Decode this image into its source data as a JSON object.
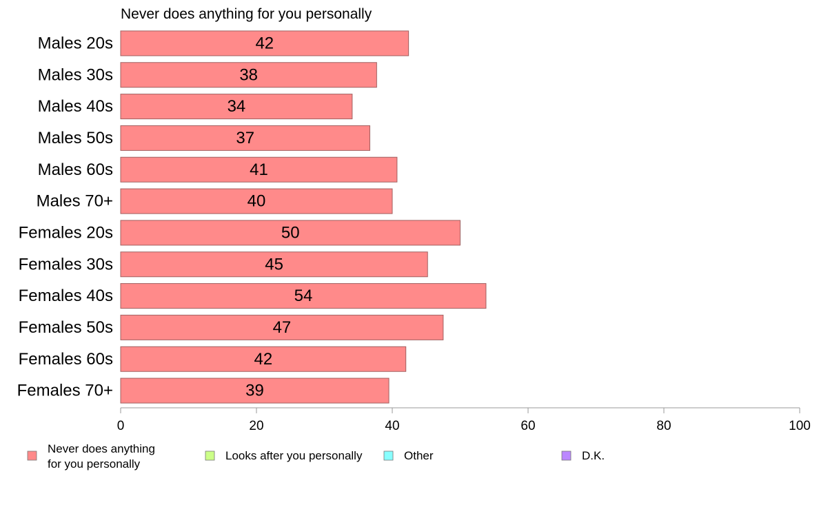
{
  "chart_data": {
    "type": "bar",
    "orientation": "horizontal",
    "title": "Never does anything for you personally",
    "categories": [
      "Males 20s",
      "Males 30s",
      "Males 40s",
      "Males 50s",
      "Males 60s",
      "Males 70+",
      "Females 20s",
      "Females 30s",
      "Females 40s",
      "Females 50s",
      "Females 60s",
      "Females 70+"
    ],
    "series": [
      {
        "name": "Never does anything for you personally",
        "values": [
          42.4,
          37.7,
          34.1,
          36.7,
          40.7,
          40.0,
          50.0,
          45.2,
          53.8,
          47.5,
          42.0,
          39.5
        ],
        "labels": [
          "42",
          "38",
          "34",
          "37",
          "41",
          "40",
          "50",
          "45",
          "54",
          "47",
          "42",
          "39"
        ]
      }
    ],
    "xlim": [
      0,
      100
    ],
    "xticks": [
      "0",
      "20",
      "40",
      "60",
      "80",
      "100"
    ],
    "xlabel": "",
    "ylabel": "",
    "grid": false,
    "legend_position": "bottom",
    "legend": [
      {
        "line1": "Never does anything",
        "line2": "for you personally",
        "color": "#ff8a8a"
      },
      {
        "line1": "Looks after you personally",
        "line2": "",
        "color": "#ccff88"
      },
      {
        "line1": "Other",
        "line2": "",
        "color": "#88ffff"
      },
      {
        "line1": "D.K.",
        "line2": "",
        "color": "#bb88ff"
      }
    ],
    "colors": {
      "bar": "#ff8a8a",
      "bar_stroke": "#a06060",
      "axis": "#999999"
    }
  }
}
